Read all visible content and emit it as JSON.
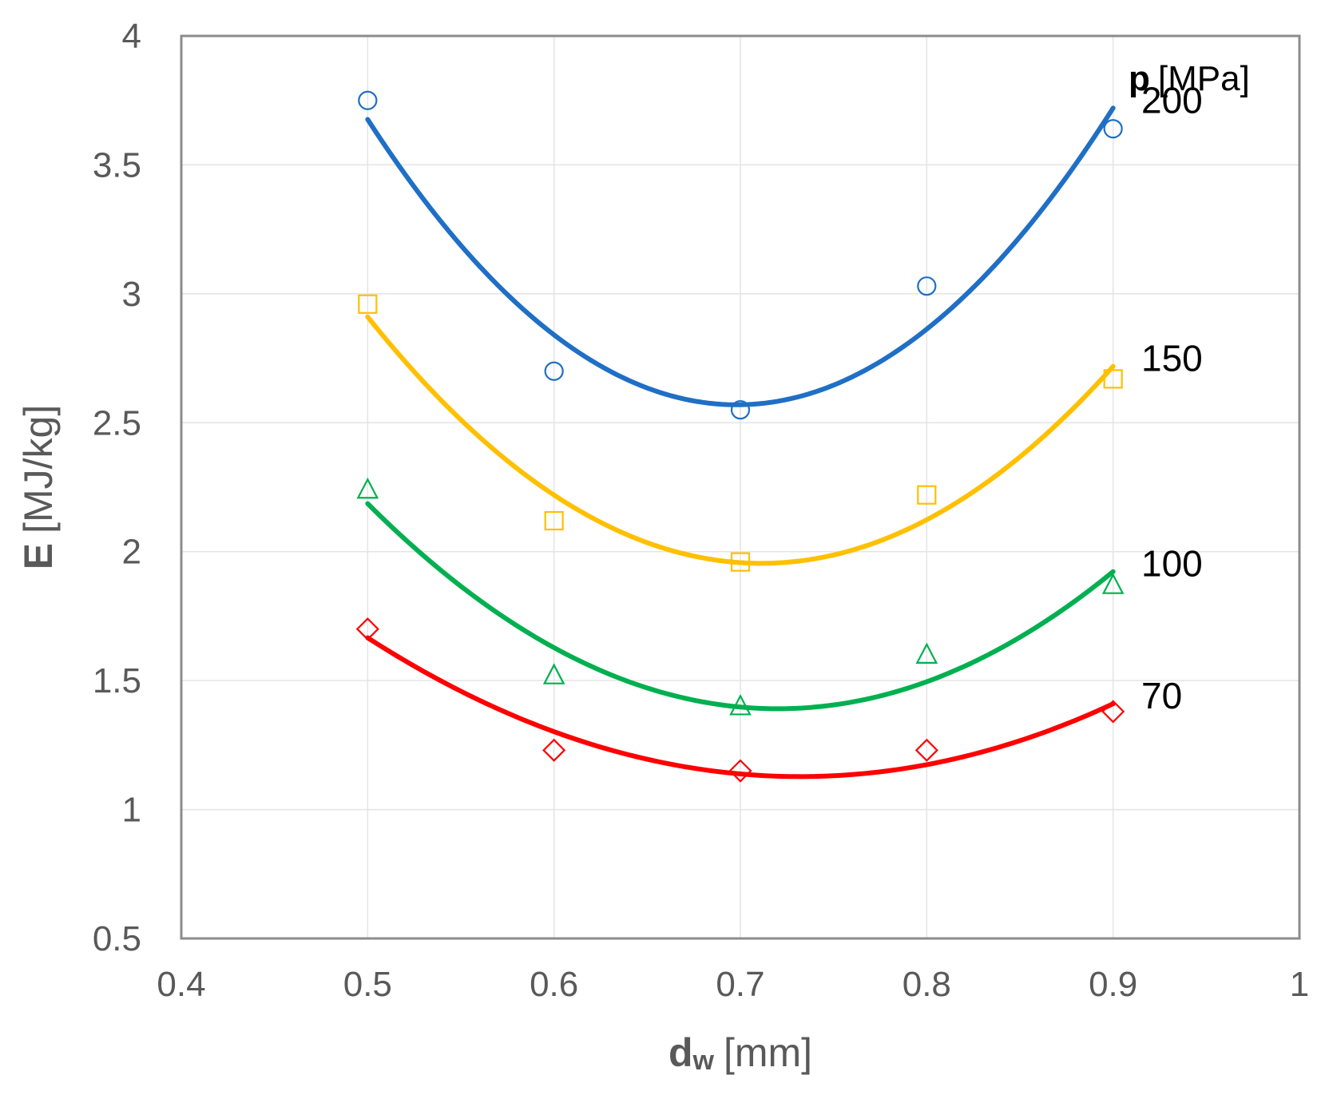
{
  "chart_data": {
    "type": "scatter",
    "title": "",
    "xlabel": {
      "symbol": "d",
      "subscript": "w",
      "unit": "[mm]"
    },
    "ylabel": {
      "symbol": "E",
      "unit": "[MJ/kg]"
    },
    "xlim": [
      0.4,
      1.0
    ],
    "ylim": [
      0.5,
      4.0
    ],
    "x_ticks": [
      "0.4",
      "0.5",
      "0.6",
      "0.7",
      "0.8",
      "0.9",
      "1"
    ],
    "y_ticks": [
      "0.5",
      "1",
      "1.5",
      "2",
      "2.5",
      "3",
      "3.5",
      "4"
    ],
    "grid": true,
    "legend_title": {
      "symbol": "p",
      "unit": "[MPa]"
    },
    "legend_placement": "right, next to each curve end",
    "trendline": "quadratic polynomial fit",
    "series": [
      {
        "name": "200",
        "color": "#1f6fc6",
        "marker": "circle",
        "x": [
          0.5,
          0.6,
          0.7,
          0.8,
          0.9
        ],
        "y": [
          3.75,
          2.7,
          2.55,
          3.03,
          3.64
        ]
      },
      {
        "name": "150",
        "color": "#ffc000",
        "marker": "square",
        "x": [
          0.5,
          0.6,
          0.7,
          0.8,
          0.9
        ],
        "y": [
          2.96,
          2.12,
          1.96,
          2.22,
          2.67
        ]
      },
      {
        "name": "100",
        "color": "#00b050",
        "marker": "triangle",
        "x": [
          0.5,
          0.6,
          0.7,
          0.8,
          0.9
        ],
        "y": [
          2.24,
          1.52,
          1.4,
          1.6,
          1.87
        ]
      },
      {
        "name": "70",
        "color": "#ff0000",
        "marker": "diamond",
        "x": [
          0.5,
          0.6,
          0.7,
          0.8,
          0.9
        ],
        "y": [
          1.7,
          1.23,
          1.15,
          1.23,
          1.38
        ]
      }
    ]
  }
}
